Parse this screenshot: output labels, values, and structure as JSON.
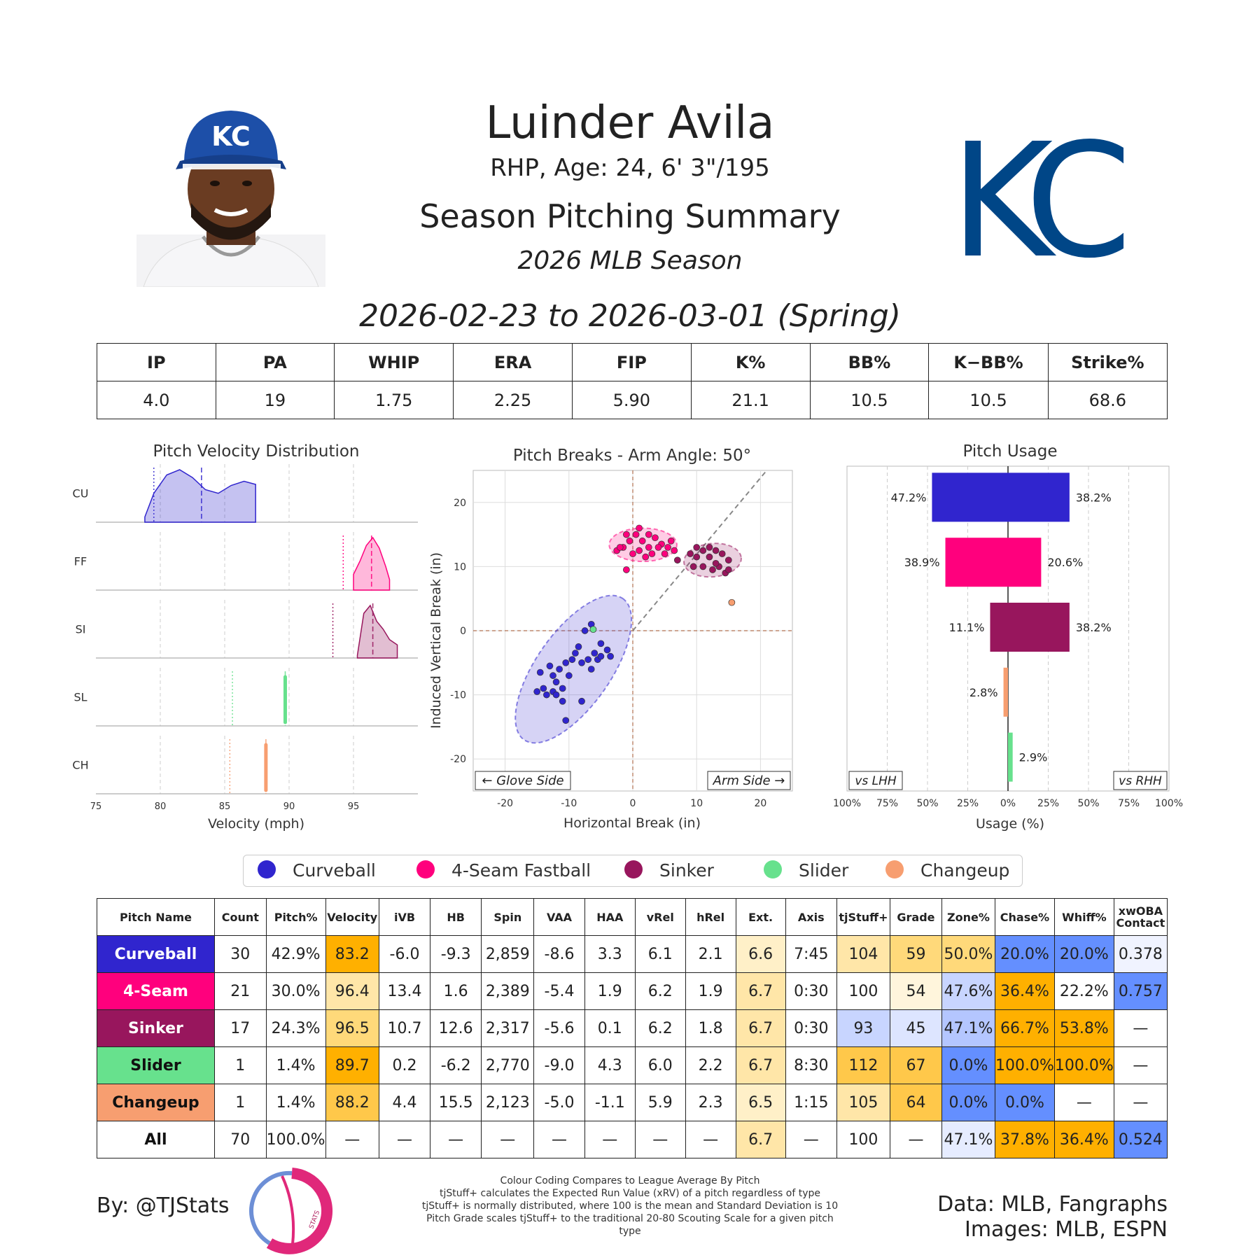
{
  "header": {
    "player_name": "Luinder Avila",
    "player_info": "RHP, Age: 24, 6' 3\"/195",
    "summary_title": "Season Pitching Summary",
    "season_label": "2026 MLB Season",
    "date_range": "2026-02-23 to 2026-03-01 (Spring)",
    "cap_logo_text": "KC",
    "team_logo_text": "KC"
  },
  "stats": {
    "headers": [
      "IP",
      "PA",
      "WHIP",
      "ERA",
      "FIP",
      "K%",
      "BB%",
      "K−BB%",
      "Strike%"
    ],
    "values": [
      "4.0",
      "19",
      "1.75",
      "2.25",
      "5.90",
      "21.1",
      "10.5",
      "10.5",
      "68.6"
    ]
  },
  "colors": {
    "Curveball": "#3025ce",
    "4-Seam Fastball": "#ff007d",
    "Sinker": "#98165d",
    "Slider": "#67e18d",
    "Changeup": "#f79e70",
    "good_strong": "#648fff",
    "good_light": "#c8d5ff",
    "bad_strong": "#ffb000",
    "bad_light": "#ffe6a8"
  },
  "chart_data": [
    {
      "type": "area",
      "title": "Pitch Velocity Distribution",
      "xlabel": "Velocity (mph)",
      "xlim": [
        75,
        100
      ],
      "xticks": [
        "75",
        "80",
        "85",
        "90",
        "95"
      ],
      "series": [
        {
          "name": "CU",
          "pitch": "Curveball",
          "x": [
            78.8,
            79.5,
            80.5,
            81.5,
            82.5,
            83.5,
            84.5,
            85.5,
            86.5,
            87.4
          ],
          "y": [
            0.1,
            0.55,
            0.9,
            1.0,
            0.85,
            0.62,
            0.55,
            0.7,
            0.78,
            0.72
          ],
          "mean": 83.2,
          "league_mean": 79.5
        },
        {
          "name": "FF",
          "pitch": "4-Seam Fastball",
          "x": [
            95.0,
            95.5,
            96.0,
            96.5,
            97.0,
            97.5,
            97.8
          ],
          "y": [
            0.3,
            0.55,
            0.85,
            1.0,
            0.8,
            0.45,
            0.2
          ],
          "mean": 96.4,
          "league_mean": 94.2
        },
        {
          "name": "SI",
          "pitch": "Sinker",
          "x": [
            95.3,
            95.8,
            96.3,
            96.8,
            97.3,
            97.8,
            98.4
          ],
          "y": [
            0.05,
            0.85,
            1.0,
            0.7,
            0.55,
            0.35,
            0.25
          ],
          "mean": 96.5,
          "league_mean": 93.4
        },
        {
          "name": "SL",
          "pitch": "Slider",
          "x": [
            89.7
          ],
          "y": [
            1.0
          ],
          "mean": 89.7,
          "league_mean": 85.6
        },
        {
          "name": "CH",
          "pitch": "Changeup",
          "x": [
            88.2
          ],
          "y": [
            1.0
          ],
          "mean": 88.2,
          "league_mean": 85.4
        }
      ]
    },
    {
      "type": "scatter",
      "title": "Pitch Breaks - Arm Angle: 50°",
      "xlabel": "Horizontal Break (in)",
      "ylabel": "Induced Vertical Break (in)",
      "xlim": [
        -25,
        25
      ],
      "ylim": [
        -25,
        25
      ],
      "xticks": [
        "-20",
        "-10",
        "0",
        "10",
        "20"
      ],
      "yticks": [
        "20",
        "10",
        "0",
        "-10",
        "-20"
      ],
      "arm_angle": 50,
      "left_label": "← Glove Side",
      "right_label": "Arm Side →",
      "series": [
        {
          "name": "Curveball",
          "points": [
            [
              -6.5,
              1
            ],
            [
              -7.5,
              0
            ],
            [
              -8.5,
              -2.5
            ],
            [
              -9,
              -3.5
            ],
            [
              -9.5,
              -4.5
            ],
            [
              -10.5,
              -5
            ],
            [
              -11.5,
              -6
            ],
            [
              -12.5,
              -7
            ],
            [
              -13,
              -5.5
            ],
            [
              -14.5,
              -6.5
            ],
            [
              -12,
              -8
            ],
            [
              -10,
              -7
            ],
            [
              -11,
              -9
            ],
            [
              -12.5,
              -9.5
            ],
            [
              -14,
              -9
            ],
            [
              -15,
              -9.5
            ],
            [
              -13.5,
              -10
            ],
            [
              -12,
              -10
            ],
            [
              -11,
              -11
            ],
            [
              -10.5,
              -14
            ],
            [
              -8,
              -11
            ],
            [
              -5.5,
              -4.5
            ],
            [
              -6,
              -3.5
            ],
            [
              -5,
              -2
            ],
            [
              -4,
              -3
            ],
            [
              -6.5,
              -6
            ],
            [
              -7,
              -4.5
            ],
            [
              -8,
              -5
            ],
            [
              -5,
              -4
            ],
            [
              -3.5,
              -4
            ]
          ]
        },
        {
          "name": "4-Seam Fastball",
          "points": [
            [
              -1,
              9.5
            ],
            [
              -2.5,
              12.5
            ],
            [
              -1.5,
              13
            ],
            [
              -0.5,
              14
            ],
            [
              0.5,
              15
            ],
            [
              1.5,
              14
            ],
            [
              2.5,
              13
            ],
            [
              2,
              11.5
            ],
            [
              3,
              12
            ],
            [
              3.5,
              14.5
            ],
            [
              4.5,
              13.5
            ],
            [
              5.5,
              13
            ],
            [
              5,
              12
            ],
            [
              6,
              14
            ],
            [
              6.5,
              12.5
            ],
            [
              0,
              12
            ],
            [
              1,
              12.5
            ],
            [
              -2,
              13
            ],
            [
              -1,
              15
            ],
            [
              1,
              16
            ],
            [
              2.5,
              15
            ],
            [
              4,
              13
            ]
          ]
        },
        {
          "name": "Sinker",
          "points": [
            [
              7,
              11
            ],
            [
              9,
              12
            ],
            [
              10,
              13
            ],
            [
              11,
              12.5
            ],
            [
              12,
              11.5
            ],
            [
              13,
              12.5
            ],
            [
              14,
              12
            ],
            [
              15,
              11
            ],
            [
              13.5,
              10
            ],
            [
              12.5,
              9.5
            ],
            [
              11,
              10
            ],
            [
              10,
              11.5
            ],
            [
              9.5,
              10
            ],
            [
              14.5,
              9
            ],
            [
              15,
              9.5
            ],
            [
              12,
              13
            ],
            [
              13,
              10.5
            ]
          ]
        },
        {
          "name": "Slider",
          "points": [
            [
              -6.2,
              0.2
            ]
          ]
        },
        {
          "name": "Changeup",
          "points": [
            [
              15.5,
              4.4
            ]
          ]
        }
      ],
      "ellipses": [
        {
          "name": "Curveball",
          "cx": -9.3,
          "cy": -6.0,
          "rx": 13.5,
          "ry": 5.8,
          "angle": -55
        },
        {
          "name": "4-Seam Fastball",
          "cx": 1.6,
          "cy": 13.4,
          "rx": 5.3,
          "ry": 2.6,
          "angle": 0
        },
        {
          "name": "Sinker",
          "cx": 12.5,
          "cy": 11.0,
          "rx": 4.5,
          "ry": 2.6,
          "angle": -5
        }
      ]
    },
    {
      "type": "bar",
      "title": "Pitch Usage",
      "xlabel": "Usage (%)",
      "xlim": [
        -100,
        100
      ],
      "xticks": [
        "100%",
        "75%",
        "50%",
        "25%",
        "0%",
        "25%",
        "50%",
        "75%",
        "100%"
      ],
      "left_label": "vs LHH",
      "right_label": "vs RHH",
      "categories": [
        "Curveball",
        "4-Seam Fastball",
        "Sinker",
        "Changeup",
        "Slider"
      ],
      "series": [
        {
          "name": "vs LHH",
          "values": [
            47.2,
            38.9,
            11.1,
            2.8,
            0
          ],
          "labels": [
            "47.2%",
            "38.9%",
            "11.1%",
            "2.8%",
            ""
          ]
        },
        {
          "name": "vs RHH",
          "values": [
            38.2,
            20.6,
            38.2,
            0,
            2.9
          ],
          "labels": [
            "38.2%",
            "20.6%",
            "38.2%",
            "",
            "2.9%"
          ]
        }
      ]
    }
  ],
  "legend": [
    "Curveball",
    "4-Seam Fastball",
    "Sinker",
    "Slider",
    "Changeup"
  ],
  "pitch_table": {
    "headers": [
      "Pitch Name",
      "Count",
      "Pitch%",
      "Velocity",
      "iVB",
      "HB",
      "Spin",
      "VAA",
      "HAA",
      "vRel",
      "hRel",
      "Ext.",
      "Axis",
      "tjStuff+",
      "Grade",
      "Zone%",
      "Chase%",
      "Whiff%",
      "xwOBA\nContact"
    ],
    "rows": [
      {
        "name": "Curveball",
        "bg": "#3025ce",
        "fg": "#ffffff",
        "cells": [
          "30",
          "42.9%",
          "83.2",
          "-6.0",
          "-9.3",
          "2,859",
          "-8.6",
          "3.3",
          "6.1",
          "2.1",
          "6.6",
          "7:45",
          "104",
          "59",
          "50.0%",
          "20.0%",
          "20.0%",
          "0.378"
        ],
        "shade": [
          "",
          "",
          "#ffb000",
          "",
          "",
          "",
          "",
          "",
          "",
          "",
          "#fff0c8",
          "",
          "#ffe6a8",
          "#ffd97a",
          "#ffd97a",
          "#648fff",
          "#648fff",
          "#f0f3ff"
        ]
      },
      {
        "name": "4-Seam",
        "bg": "#ff007d",
        "fg": "#ffffff",
        "cells": [
          "21",
          "30.0%",
          "96.4",
          "13.4",
          "1.6",
          "2,389",
          "-5.4",
          "1.9",
          "6.2",
          "1.9",
          "6.7",
          "0:30",
          "100",
          "54",
          "47.6%",
          "36.4%",
          "22.2%",
          "0.757"
        ],
        "shade": [
          "",
          "",
          "#ffe6a8",
          "",
          "",
          "",
          "",
          "",
          "",
          "",
          "#ffe6a8",
          "",
          "",
          "#fff5dc",
          "#c8d5ff",
          "#ffb000",
          "",
          "#648fff"
        ]
      },
      {
        "name": "Sinker",
        "bg": "#98165d",
        "fg": "#ffffff",
        "cells": [
          "17",
          "24.3%",
          "96.5",
          "10.7",
          "12.6",
          "2,317",
          "-5.6",
          "0.1",
          "6.2",
          "1.8",
          "6.7",
          "0:30",
          "93",
          "45",
          "47.1%",
          "66.7%",
          "53.8%",
          "—"
        ],
        "shade": [
          "",
          "",
          "#ffd97a",
          "",
          "",
          "",
          "",
          "",
          "",
          "",
          "#ffe6a8",
          "",
          "#c8d5ff",
          "#dde5ff",
          "#b4c6ff",
          "#ffb000",
          "#ffb000",
          ""
        ]
      },
      {
        "name": "Slider",
        "bg": "#67e18d",
        "fg": "#111111",
        "cells": [
          "1",
          "1.4%",
          "89.7",
          "0.2",
          "-6.2",
          "2,770",
          "-9.0",
          "4.3",
          "6.0",
          "2.2",
          "6.7",
          "8:30",
          "112",
          "67",
          "0.0%",
          "100.0%",
          "100.0%",
          "—"
        ],
        "shade": [
          "",
          "",
          "#ffb000",
          "",
          "",
          "",
          "",
          "",
          "",
          "",
          "#ffe6a8",
          "",
          "#ffc84a",
          "#ffc84a",
          "#648fff",
          "#ffb000",
          "#ffb000",
          ""
        ]
      },
      {
        "name": "Changeup",
        "bg": "#f79e70",
        "fg": "#111111",
        "cells": [
          "1",
          "1.4%",
          "88.2",
          "4.4",
          "15.5",
          "2,123",
          "-5.0",
          "-1.1",
          "5.9",
          "2.3",
          "6.5",
          "1:15",
          "105",
          "64",
          "0.0%",
          "0.0%",
          "—",
          "—"
        ],
        "shade": [
          "",
          "",
          "#ffc84a",
          "",
          "",
          "",
          "",
          "",
          "",
          "",
          "#fff0c8",
          "",
          "#ffe6a8",
          "#ffc84a",
          "#648fff",
          "#648fff",
          "",
          ""
        ]
      },
      {
        "name": "All",
        "bg": "#ffffff",
        "fg": "#111111",
        "cells": [
          "70",
          "100.0%",
          "—",
          "—",
          "—",
          "—",
          "—",
          "—",
          "—",
          "—",
          "6.7",
          "—",
          "100",
          "—",
          "47.1%",
          "37.8%",
          "36.4%",
          "0.524"
        ],
        "shade": [
          "",
          "",
          "",
          "",
          "",
          "",
          "",
          "",
          "",
          "",
          "#ffe6a8",
          "",
          "",
          "",
          "#e6ecff",
          "#ffb000",
          "#ffb000",
          "#648fff"
        ]
      }
    ]
  },
  "footer": {
    "by": "By: @TJStats",
    "notes": [
      "Colour Coding Compares to League Average By Pitch",
      "tjStuff+ calculates the Expected Run Value (xRV) of a pitch regardless of type",
      "tjStuff+ is normally distributed, where 100 is the mean and Standard Deviation is 10",
      "Pitch Grade scales tjStuff+ to the traditional 20-80 Scouting Scale for a given pitch type"
    ],
    "source_line1": "Data: MLB, Fangraphs",
    "source_line2": "Images: MLB, ESPN",
    "logo_text": "STATS"
  }
}
